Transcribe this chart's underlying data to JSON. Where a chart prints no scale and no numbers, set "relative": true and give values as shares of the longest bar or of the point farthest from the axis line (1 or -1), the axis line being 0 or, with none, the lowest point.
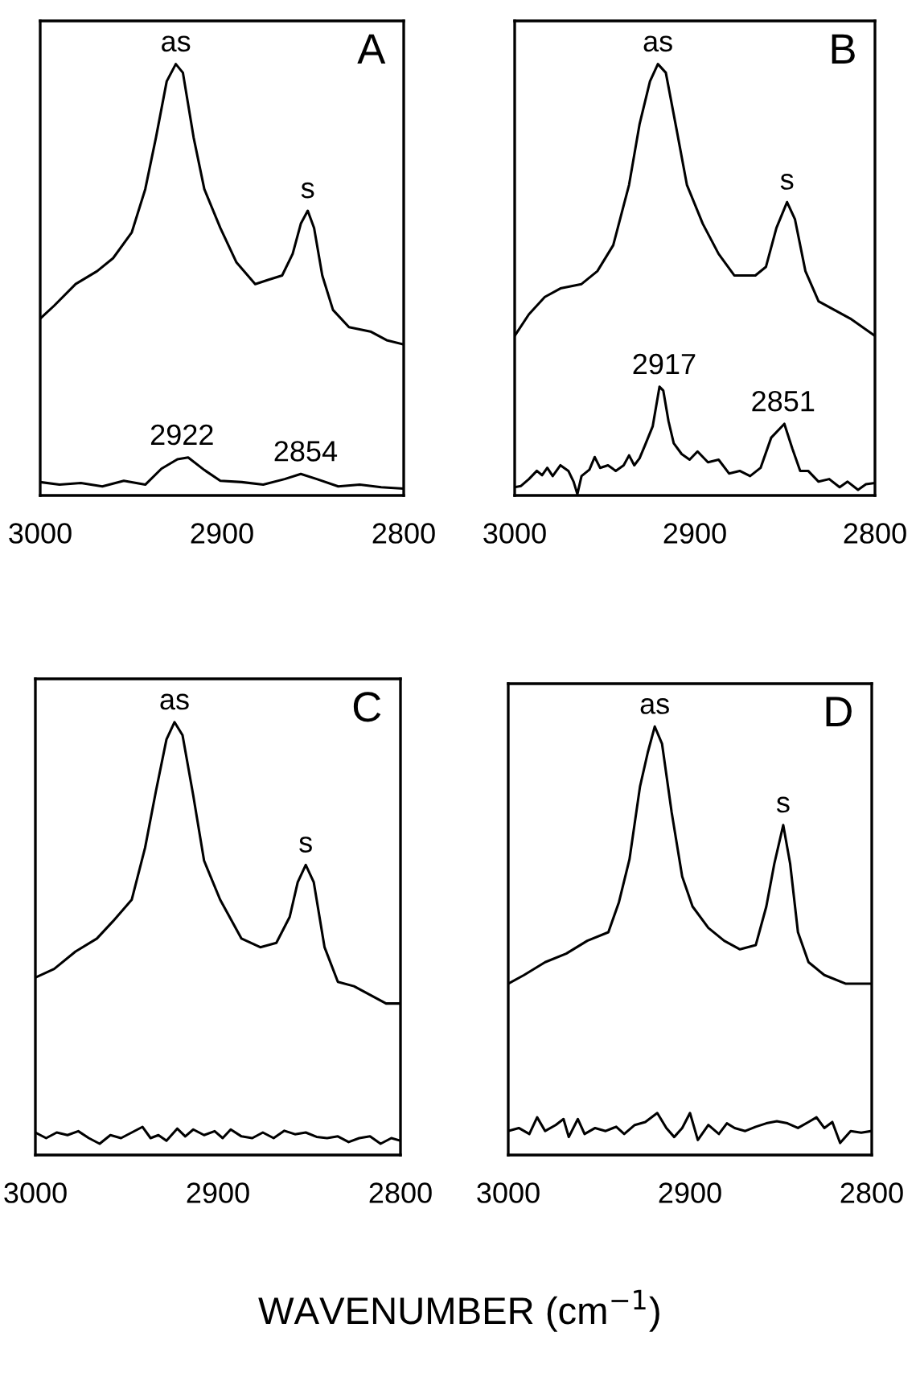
{
  "chart_data": [
    {
      "type": "line",
      "title": "A",
      "relative": true,
      "xlim": [
        3000,
        2800
      ],
      "xticks": [
        3000,
        2900,
        2800
      ],
      "tick_labels": "x",
      "grid": false,
      "legend": false,
      "series": [
        {
          "color": "#000000",
          "x": [
            3000,
            2992.3,
            2980.5,
            2968.7,
            2959.9,
            2949.6,
            2942.2,
            2936.3,
            2930.4,
            2925.4,
            2921.5,
            2915.6,
            2909.7,
            2900.9,
            2892.0,
            2881.7,
            2874.3,
            2866.9,
            2861.1,
            2856.6,
            2852.8,
            2849.3,
            2844.8,
            2838.9,
            2830.1,
            2818.3,
            2809.4,
            2800
          ],
          "values": [
            0.41,
            0.44,
            0.49,
            0.52,
            0.55,
            0.61,
            0.71,
            0.83,
            0.96,
            1.0,
            0.98,
            0.83,
            0.71,
            0.62,
            0.54,
            0.49,
            0.5,
            0.51,
            0.56,
            0.63,
            0.66,
            0.62,
            0.51,
            0.43,
            0.39,
            0.38,
            0.36,
            0.35
          ]
        },
        {
          "color": "#000000",
          "x": [
            3000,
            2989.4,
            2977.6,
            2965.8,
            2954.0,
            2942.2,
            2933.3,
            2924.5,
            2918.6,
            2909.7,
            2900.9,
            2889.1,
            2877.3,
            2865.5,
            2856.6,
            2847.8,
            2836.0,
            2824.2,
            2812.4,
            2800
          ],
          "values": [
            0.031,
            0.025,
            0.029,
            0.021,
            0.034,
            0.025,
            0.062,
            0.084,
            0.088,
            0.059,
            0.034,
            0.031,
            0.025,
            0.038,
            0.05,
            0.038,
            0.021,
            0.025,
            0.019,
            0.016
          ]
        }
      ],
      "annotations": [
        {
          "text": "as",
          "x": 2925.4,
          "y": 1.0
        },
        {
          "text": "s",
          "x": 2852.8,
          "y": 0.66
        },
        {
          "text": "2922",
          "x": 2922,
          "y": 0.088
        },
        {
          "text": "2854",
          "x": 2854,
          "y": 0.05
        }
      ]
    },
    {
      "type": "line",
      "title": "B",
      "relative": true,
      "xlim": [
        3000,
        2800
      ],
      "xticks": [
        3000,
        2900,
        2800
      ],
      "tick_labels": "x",
      "grid": false,
      "legend": false,
      "series": [
        {
          "color": "#000000",
          "x": [
            3000,
            2992.1,
            2983.3,
            2974.6,
            2962.9,
            2954.1,
            2945.3,
            2936.5,
            2930.7,
            2924.9,
            2920.5,
            2916.1,
            2910.2,
            2904.4,
            2895.6,
            2886.8,
            2878.1,
            2866.4,
            2860.5,
            2854.7,
            2848.8,
            2844.4,
            2838.6,
            2831.3,
            2822.5,
            2813.7,
            2800
          ],
          "values": [
            0.37,
            0.42,
            0.46,
            0.48,
            0.49,
            0.52,
            0.58,
            0.72,
            0.86,
            0.96,
            1.0,
            0.98,
            0.85,
            0.72,
            0.63,
            0.56,
            0.51,
            0.51,
            0.53,
            0.62,
            0.68,
            0.64,
            0.52,
            0.45,
            0.43,
            0.41,
            0.37
          ]
        },
        {
          "color": "#000000",
          "x": [
            3000,
            2996.5,
            2992.1,
            2987.7,
            2984.8,
            2981.9,
            2978.9,
            2974.6,
            2970.2,
            2967.3,
            2965.2,
            2962.9,
            2958.5,
            2955.6,
            2952.6,
            2948.2,
            2943.9,
            2939.5,
            2936.5,
            2933.6,
            2930.7,
            2927.8,
            2923.4,
            2919.6,
            2917.5,
            2914.6,
            2911.7,
            2907.3,
            2902.9,
            2898.5,
            2892.7,
            2886.8,
            2881.0,
            2875.1,
            2869.3,
            2863.5,
            2857.6,
            2850.3,
            2845.9,
            2841.5,
            2837.1,
            2831.3,
            2825.4,
            2819.6,
            2815.2,
            2809.4,
            2805.0,
            2800
          ],
          "values": [
            0.019,
            0.022,
            0.038,
            0.057,
            0.047,
            0.064,
            0.045,
            0.07,
            0.057,
            0.032,
            0.003,
            0.045,
            0.06,
            0.089,
            0.064,
            0.07,
            0.057,
            0.07,
            0.093,
            0.07,
            0.086,
            0.115,
            0.16,
            0.252,
            0.243,
            0.172,
            0.121,
            0.096,
            0.083,
            0.102,
            0.077,
            0.083,
            0.051,
            0.057,
            0.045,
            0.064,
            0.134,
            0.166,
            0.109,
            0.057,
            0.057,
            0.032,
            0.038,
            0.019,
            0.032,
            0.013,
            0.026,
            0.029
          ]
        }
      ],
      "annotations": [
        {
          "text": "as",
          "x": 2920.5,
          "y": 1.0
        },
        {
          "text": "s",
          "x": 2848.8,
          "y": 0.68
        },
        {
          "text": "2917",
          "x": 2917,
          "y": 0.252
        },
        {
          "text": "2851",
          "x": 2851,
          "y": 0.166
        }
      ]
    },
    {
      "type": "line",
      "title": "C",
      "relative": true,
      "xlim": [
        3000,
        2800
      ],
      "xticks": [
        3000,
        2900,
        2800
      ],
      "tick_labels": "x",
      "grid": false,
      "legend": false,
      "xlabel": "WAVENUMBER (cm$^{−1}$)",
      "series": [
        {
          "color": "#000000",
          "x": [
            3000,
            2989.7,
            2978.0,
            2966.3,
            2957.5,
            2947.2,
            2939.9,
            2934.0,
            2928.2,
            2923.8,
            2919.4,
            2913.5,
            2907.6,
            2898.8,
            2887.1,
            2876.8,
            2868.0,
            2860.7,
            2856.3,
            2851.9,
            2847.5,
            2841.6,
            2834.3,
            2825.5,
            2816.7,
            2807.9,
            2800
          ],
          "values": [
            0.41,
            0.43,
            0.47,
            0.5,
            0.54,
            0.59,
            0.71,
            0.84,
            0.96,
            1.0,
            0.97,
            0.83,
            0.68,
            0.59,
            0.5,
            0.48,
            0.49,
            0.55,
            0.63,
            0.67,
            0.63,
            0.48,
            0.4,
            0.39,
            0.37,
            0.35,
            0.35
          ]
        },
        {
          "color": "#000000",
          "x": [
            3000,
            2994.1,
            2988.3,
            2982.4,
            2976.5,
            2970.7,
            2964.8,
            2958.9,
            2953.1,
            2947.2,
            2941.3,
            2936.9,
            2932.6,
            2928.2,
            2922.3,
            2917.9,
            2913.5,
            2907.6,
            2901.8,
            2897.4,
            2893.0,
            2887.1,
            2881.2,
            2875.4,
            2869.5,
            2863.6,
            2857.8,
            2851.9,
            2846.0,
            2840.2,
            2834.3,
            2828.4,
            2822.6,
            2816.7,
            2810.9,
            2805.0,
            2800
          ],
          "values": [
            0.052,
            0.039,
            0.052,
            0.046,
            0.055,
            0.039,
            0.026,
            0.046,
            0.039,
            0.052,
            0.065,
            0.039,
            0.046,
            0.033,
            0.061,
            0.043,
            0.059,
            0.046,
            0.055,
            0.039,
            0.059,
            0.043,
            0.039,
            0.052,
            0.039,
            0.056,
            0.048,
            0.052,
            0.042,
            0.039,
            0.043,
            0.03,
            0.039,
            0.043,
            0.026,
            0.039,
            0.033
          ]
        }
      ],
      "annotations": [
        {
          "text": "as",
          "x": 2923.8,
          "y": 1.0
        },
        {
          "text": "s",
          "x": 2851.9,
          "y": 0.67
        }
      ]
    },
    {
      "type": "line",
      "title": "D",
      "relative": true,
      "xlim": [
        3000,
        2800
      ],
      "xticks": [
        3000,
        2900,
        2800
      ],
      "tick_labels": "x",
      "grid": false,
      "legend": false,
      "series": [
        {
          "color": "#000000",
          "x": [
            3000,
            2991.3,
            2979.7,
            2968.1,
            2956.5,
            2944.9,
            2939.1,
            2933.3,
            2927.5,
            2923.2,
            2919.4,
            2915.4,
            2910.1,
            2904.3,
            2898.6,
            2889.9,
            2881.2,
            2872.5,
            2863.8,
            2858.0,
            2853.6,
            2848.7,
            2844.9,
            2840.6,
            2834.8,
            2826.1,
            2814.5,
            2800
          ],
          "values": [
            0.4,
            0.42,
            0.45,
            0.47,
            0.5,
            0.52,
            0.59,
            0.69,
            0.86,
            0.94,
            1.0,
            0.96,
            0.8,
            0.65,
            0.58,
            0.53,
            0.5,
            0.48,
            0.49,
            0.58,
            0.68,
            0.77,
            0.68,
            0.52,
            0.45,
            0.42,
            0.4,
            0.4
          ]
        },
        {
          "color": "#000000",
          "x": [
            3000,
            2994.2,
            2988.4,
            2984.1,
            2979.7,
            2973.9,
            2969.6,
            2966.7,
            2961.7,
            2958.0,
            2952.2,
            2946.4,
            2940.6,
            2936.2,
            2930.4,
            2924.6,
            2918.0,
            2913.0,
            2908.7,
            2904.3,
            2900.0,
            2895.7,
            2889.9,
            2884.1,
            2879.7,
            2875.4,
            2869.6,
            2863.8,
            2858.0,
            2852.2,
            2846.4,
            2840.6,
            2834.8,
            2830.4,
            2826.1,
            2821.7,
            2817.4,
            2811.6,
            2805.8,
            2800
          ],
          "values": [
            0.056,
            0.063,
            0.049,
            0.088,
            0.056,
            0.07,
            0.084,
            0.042,
            0.084,
            0.049,
            0.063,
            0.056,
            0.066,
            0.049,
            0.07,
            0.077,
            0.098,
            0.063,
            0.042,
            0.063,
            0.098,
            0.035,
            0.07,
            0.049,
            0.074,
            0.063,
            0.056,
            0.066,
            0.074,
            0.079,
            0.074,
            0.063,
            0.077,
            0.088,
            0.063,
            0.077,
            0.028,
            0.056,
            0.052,
            0.056
          ]
        }
      ],
      "annotations": [
        {
          "text": "as",
          "x": 2919.4,
          "y": 1.0
        },
        {
          "text": "s",
          "x": 2848.7,
          "y": 0.77
        }
      ]
    }
  ]
}
